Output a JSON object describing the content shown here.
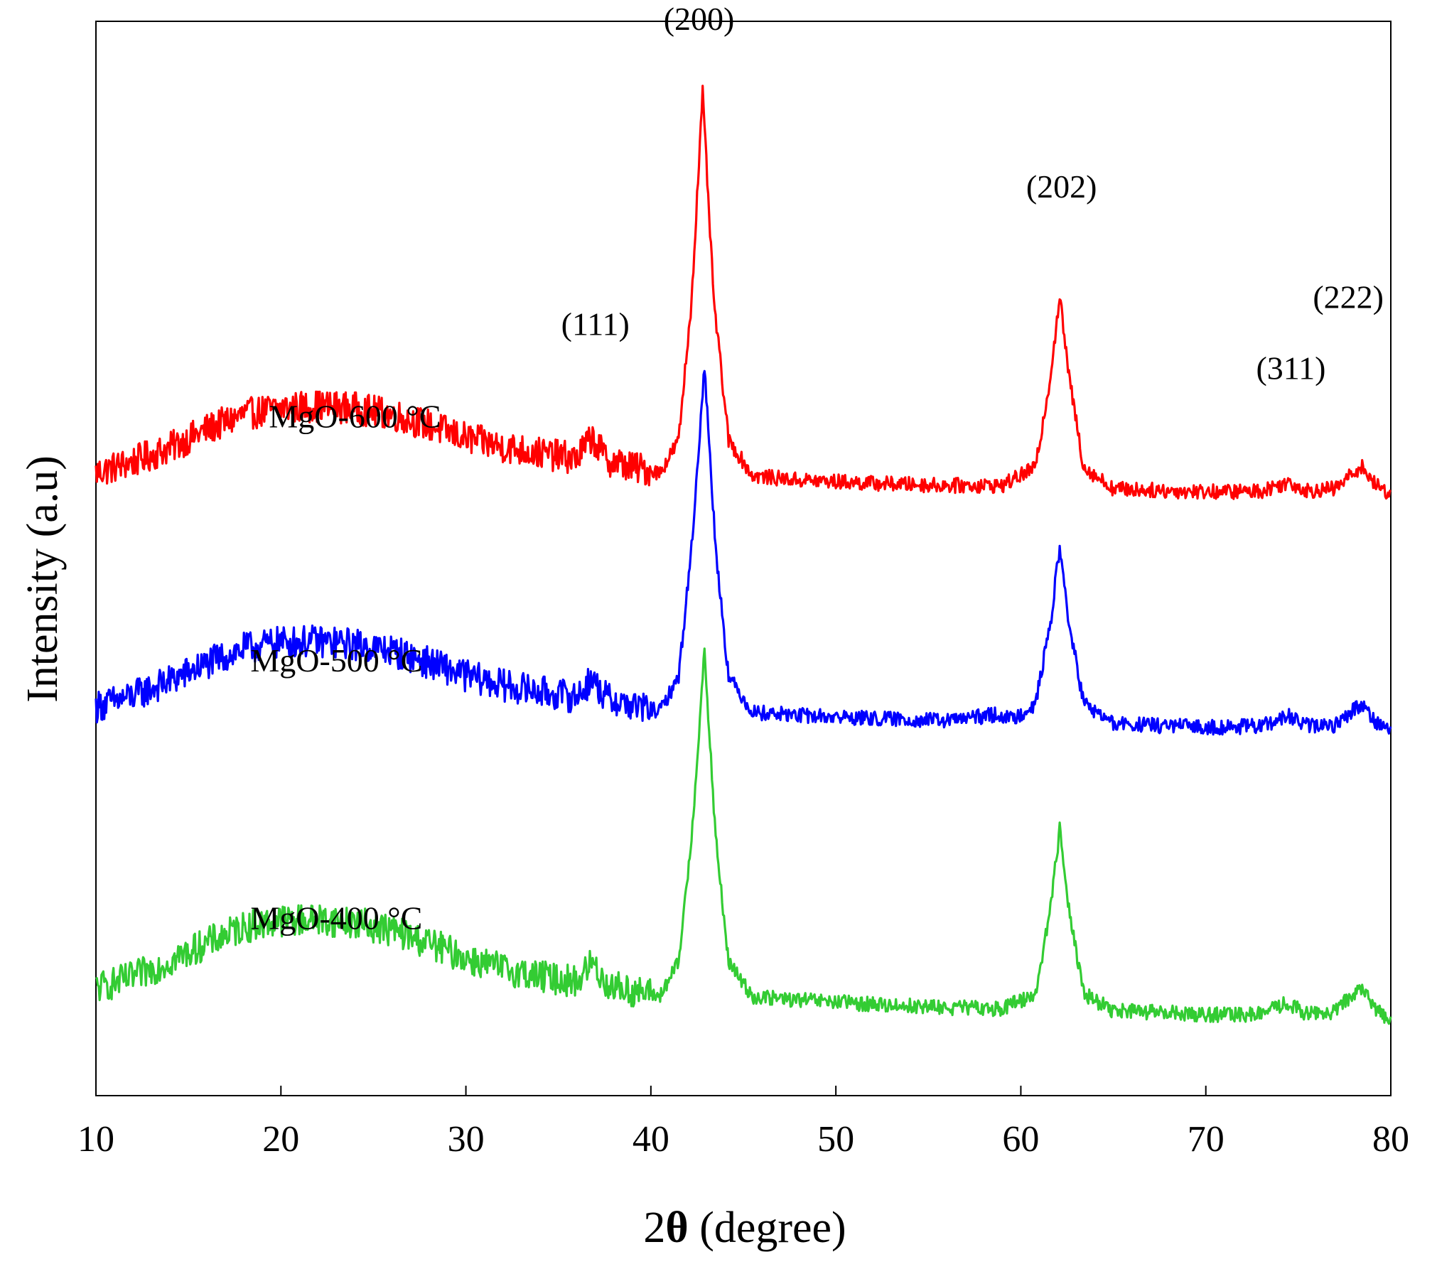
{
  "chart_data": {
    "type": "line",
    "title": "",
    "xlabel_prefix": "2",
    "xlabel_symbol": "θ",
    "xlabel_suffix": " (degree)",
    "ylabel": "Intensity (a.u)",
    "xlim": [
      10,
      80
    ],
    "ylim": [
      0,
      100
    ],
    "x_ticks": [
      10,
      20,
      30,
      40,
      50,
      60,
      70,
      80
    ],
    "x_tick_labels": [
      "10",
      "20",
      "30",
      "40",
      "50",
      "60",
      "70",
      "80"
    ],
    "y_ticks_shown": false,
    "grid": false,
    "series": [
      {
        "name": "MgO-600 °C",
        "color": "#ff0000",
        "label_at": [
          24,
          62.2
        ],
        "x": [
          10,
          12,
          14,
          16,
          18,
          20,
          22,
          24,
          26,
          28,
          30,
          32,
          34,
          36,
          36.8,
          37.6,
          39,
          40.5,
          41.5,
          42.2,
          42.8,
          43.4,
          44.2,
          45.5,
          48,
          52,
          56,
          59,
          60.8,
          61.6,
          62.1,
          62.6,
          63.4,
          65,
          68,
          71,
          73,
          74.5,
          75.5,
          77,
          78.4,
          79.2,
          80
        ],
        "values": [
          58,
          59,
          60.3,
          62,
          63.4,
          64,
          64.2,
          64,
          63.4,
          62.4,
          61.2,
          60.4,
          59.8,
          59.3,
          61.3,
          59.2,
          58.5,
          58,
          61,
          74,
          93.3,
          74,
          61,
          57.7,
          57.3,
          57,
          56.8,
          56.8,
          58.5,
          67,
          74.4,
          67,
          58.5,
          56.5,
          56.3,
          56.2,
          56.3,
          57.1,
          56.3,
          56.5,
          58.6,
          56.8,
          56
        ]
      },
      {
        "name": "MgO-500 °C",
        "color": "#0000ff",
        "label_at": [
          23,
          39.5
        ],
        "x": [
          10,
          12,
          14,
          16,
          18,
          20,
          22,
          24,
          26,
          28,
          30,
          32,
          34,
          36,
          36.8,
          37.6,
          39,
          40.5,
          41.5,
          42.2,
          42.9,
          43.5,
          44.2,
          45.5,
          48,
          52,
          56,
          58.8,
          59.5,
          60.8,
          61.6,
          62.1,
          62.6,
          63.4,
          65,
          68,
          71,
          73,
          74.5,
          75.5,
          77,
          78.4,
          79.2,
          80
        ],
        "values": [
          36.2,
          37.2,
          38.6,
          40.2,
          41.6,
          42.2,
          42.3,
          42,
          41.4,
          40.3,
          39.1,
          38.2,
          37.6,
          37.1,
          38.8,
          37,
          36.3,
          35.8,
          39,
          51,
          67.8,
          51,
          39,
          35.7,
          35.4,
          35.1,
          34.9,
          35.5,
          35,
          36.5,
          44,
          51,
          44,
          36.5,
          34.6,
          34.4,
          34.3,
          34.4,
          35.3,
          34.4,
          34.5,
          36.5,
          34.8,
          34
        ]
      },
      {
        "name": "MgO-400 °C",
        "color": "#33cc33",
        "label_at": [
          23,
          15.5
        ],
        "x": [
          10,
          12,
          14,
          16,
          18,
          20,
          22,
          24,
          26,
          28,
          30,
          32,
          34,
          36,
          36.8,
          37.6,
          39,
          40.5,
          41.5,
          42.2,
          42.9,
          43.5,
          44.2,
          45.5,
          48,
          52,
          56,
          59,
          60.8,
          61.6,
          62.1,
          62.6,
          63.4,
          65,
          68,
          71,
          73,
          74.3,
          75.5,
          77,
          78.3,
          79.2,
          80
        ],
        "values": [
          10,
          11,
          12.5,
          14.2,
          15.7,
          16.3,
          16.4,
          16.1,
          15.4,
          14.2,
          12.8,
          11.8,
          11.1,
          10.6,
          12.4,
          10.4,
          9.7,
          9.3,
          12.4,
          24,
          41.2,
          24,
          12.4,
          9.2,
          8.9,
          8.5,
          8.2,
          8.1,
          9.5,
          17.5,
          24.8,
          17.5,
          9.5,
          7.9,
          7.7,
          7.5,
          7.6,
          8.6,
          7.6,
          7.8,
          10.1,
          8.1,
          7
        ]
      }
    ],
    "annotations": [
      {
        "text": "(200)",
        "at": [
          42.6,
          99.2
        ]
      },
      {
        "text": "(111)",
        "at": [
          37,
          70.8
        ]
      },
      {
        "text": "(202)",
        "at": [
          62.2,
          83.6
        ]
      },
      {
        "text": "(311)",
        "at": [
          74.6,
          66.7
        ]
      },
      {
        "text": "(222)",
        "at": [
          77.7,
          73.3
        ]
      }
    ]
  }
}
